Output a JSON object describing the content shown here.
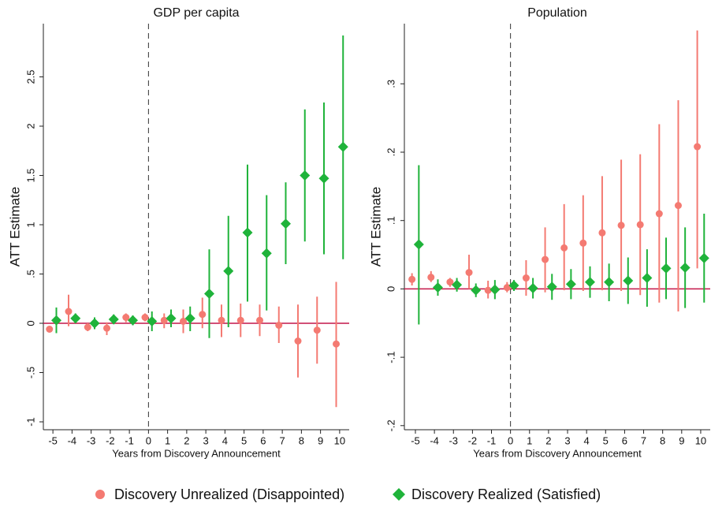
{
  "chart_data": [
    {
      "type": "errorbar",
      "title": "GDP per capita",
      "x_label": "Years from Discovery Announcement",
      "y_label": "ATT Estimate",
      "x": [
        -5,
        -4,
        -3,
        -2,
        -1,
        0,
        1,
        2,
        3,
        4,
        5,
        6,
        7,
        8,
        9,
        10
      ],
      "xlim": [
        -5.5,
        10.5
      ],
      "xticks": [
        -5,
        -4,
        -3,
        -2,
        -1,
        0,
        1,
        2,
        3,
        4,
        5,
        6,
        7,
        8,
        9,
        10
      ],
      "ylim": [
        -1.08,
        3.04
      ],
      "yticks": [
        -1,
        {
          "value": -0.5,
          "label": "-.5"
        },
        0,
        {
          "value": 0.5,
          "label": ".5"
        },
        1,
        1.5,
        2,
        2.5
      ],
      "series": [
        {
          "name": "Discovery Unrealized (Disappointed)",
          "color": "#f47a72",
          "marker": "circle",
          "values": [
            -0.06,
            0.12,
            -0.04,
            -0.05,
            0.06,
            0.06,
            0.03,
            0.02,
            0.09,
            0.03,
            0.03,
            0.03,
            -0.02,
            -0.18,
            -0.07,
            -0.21
          ],
          "ci_low": [
            -0.09,
            -0.03,
            -0.08,
            -0.12,
            0.01,
            0.02,
            -0.05,
            -0.1,
            -0.05,
            -0.14,
            -0.14,
            -0.13,
            -0.2,
            -0.55,
            -0.41,
            -0.85
          ],
          "ci_high": [
            -0.03,
            0.29,
            0.0,
            0.01,
            0.1,
            0.1,
            0.1,
            0.14,
            0.26,
            0.19,
            0.2,
            0.19,
            0.17,
            0.19,
            0.27,
            0.42
          ]
        },
        {
          "name": "Discovery Realized (Satisfied)",
          "color": "#1fb33a",
          "marker": "diamond",
          "values": [
            0.03,
            0.05,
            0.0,
            0.04,
            0.03,
            0.02,
            0.05,
            0.05,
            0.3,
            0.53,
            0.92,
            0.71,
            1.01,
            1.5,
            1.47,
            1.79
          ],
          "ci_low": [
            -0.1,
            0.0,
            -0.06,
            -0.01,
            -0.02,
            -0.08,
            -0.04,
            -0.08,
            -0.15,
            -0.04,
            0.22,
            0.13,
            0.6,
            0.83,
            0.7,
            0.65
          ],
          "ci_high": [
            0.16,
            0.1,
            0.06,
            0.09,
            0.08,
            0.12,
            0.14,
            0.17,
            0.75,
            1.09,
            1.61,
            1.3,
            1.43,
            2.17,
            2.24,
            2.92
          ]
        }
      ]
    },
    {
      "type": "errorbar",
      "title": "Population",
      "x_label": "Years from Discovery Announcement",
      "y_label": "ATT Estimate",
      "x": [
        -5,
        -4,
        -3,
        -2,
        -1,
        0,
        1,
        2,
        3,
        4,
        5,
        6,
        7,
        8,
        9,
        10
      ],
      "xlim": [
        -5.58,
        10.5
      ],
      "xticks": [
        -5,
        -4,
        -3,
        -2,
        -1,
        0,
        1,
        2,
        3,
        4,
        5,
        6,
        7,
        8,
        9,
        10
      ],
      "ylim": [
        -0.206,
        0.388
      ],
      "yticks": [
        {
          "value": -0.2,
          "label": "-.2"
        },
        {
          "value": -0.1,
          "label": "-.1"
        },
        0,
        {
          "value": 0.1,
          "label": ".1"
        },
        {
          "value": 0.2,
          "label": ".2"
        },
        {
          "value": 0.3,
          "label": ".3"
        }
      ],
      "series": [
        {
          "name": "Discovery Unrealized (Disappointed)",
          "color": "#f47a72",
          "marker": "circle",
          "values": [
            0.014,
            0.017,
            0.01,
            0.024,
            -0.002,
            0.002,
            0.016,
            0.043,
            0.06,
            0.067,
            0.082,
            0.093,
            0.094,
            0.11,
            0.122,
            0.208
          ],
          "ci_low": [
            0.005,
            0.01,
            0.003,
            0.0,
            -0.014,
            -0.005,
            -0.01,
            -0.005,
            -0.002,
            -0.003,
            -0.002,
            -0.003,
            -0.009,
            -0.02,
            -0.033,
            0.03
          ],
          "ci_high": [
            0.023,
            0.026,
            0.016,
            0.05,
            0.012,
            0.01,
            0.042,
            0.09,
            0.124,
            0.137,
            0.165,
            0.189,
            0.197,
            0.241,
            0.276,
            0.378
          ]
        },
        {
          "name": "Discovery Realized (Satisfied)",
          "color": "#1fb33a",
          "marker": "diamond",
          "values": [
            0.065,
            0.002,
            0.006,
            -0.002,
            -0.001,
            0.005,
            0.001,
            0.003,
            0.007,
            0.01,
            0.01,
            0.012,
            0.016,
            0.03,
            0.031,
            0.045
          ],
          "ci_low": [
            -0.052,
            -0.01,
            -0.004,
            -0.012,
            -0.015,
            -0.003,
            -0.014,
            -0.016,
            -0.015,
            -0.013,
            -0.018,
            -0.022,
            -0.026,
            -0.015,
            -0.028,
            -0.02
          ],
          "ci_high": [
            0.181,
            0.014,
            0.016,
            0.008,
            0.013,
            0.013,
            0.016,
            0.022,
            0.029,
            0.033,
            0.037,
            0.046,
            0.058,
            0.075,
            0.09,
            0.11
          ]
        }
      ]
    }
  ]
}
